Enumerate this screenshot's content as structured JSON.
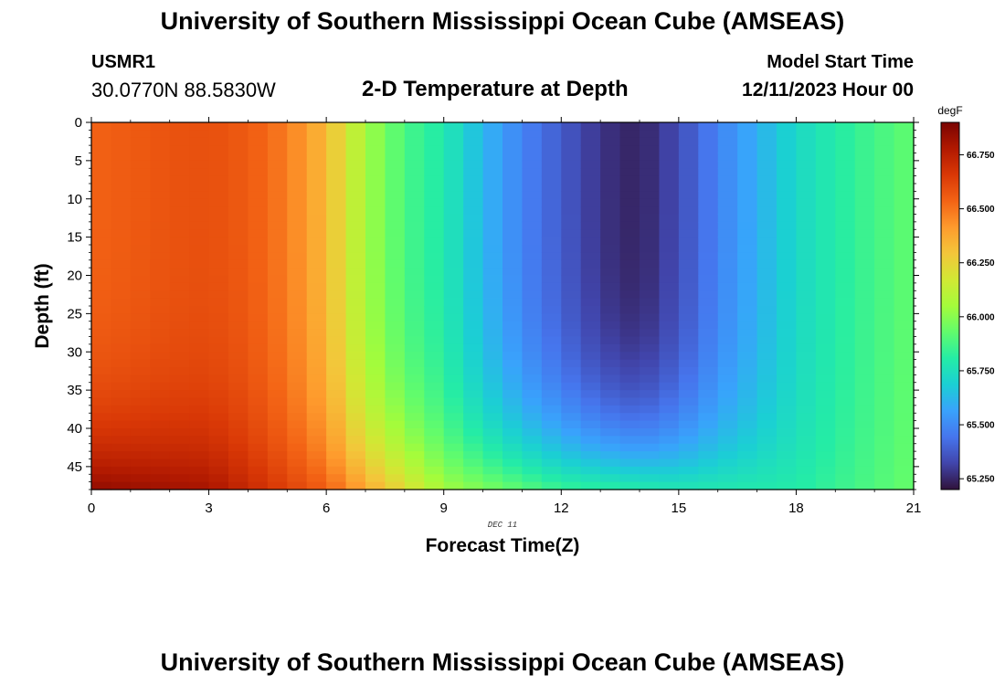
{
  "header": {
    "title": "University of Southern Mississippi Ocean Cube (AMSEAS)",
    "station": "USMR1",
    "coordinates": "30.0770N  88.5830W",
    "plot_title": "2-D Temperature at Depth",
    "model_start_label": "Model Start Time",
    "model_start_value": "12/11/2023 Hour 00"
  },
  "footer": {
    "title": "University of Southern Mississippi Ocean Cube (AMSEAS)"
  },
  "chart_data": {
    "type": "heatmap",
    "title": "2-D Temperature at Depth",
    "xlabel": "Forecast Time(Z)",
    "ylabel": "Depth (ft)",
    "date_label": "DEC 11",
    "x_ticks": [
      0,
      3,
      6,
      9,
      12,
      15,
      18,
      21
    ],
    "y_ticks": [
      0,
      5,
      10,
      15,
      20,
      25,
      30,
      35,
      40,
      45
    ],
    "xlim": [
      0,
      21
    ],
    "ylim": [
      0,
      48
    ],
    "colorbar": {
      "unit": "degF",
      "min": 65.2,
      "max": 66.9,
      "ticks": [
        {
          "value": 66.75,
          "label": "66.750"
        },
        {
          "value": 66.5,
          "label": "66.500"
        },
        {
          "value": 66.25,
          "label": "66.250"
        },
        {
          "value": 66.0,
          "label": "66.000"
        },
        {
          "value": 65.75,
          "label": "65.750"
        },
        {
          "value": 65.5,
          "label": "65.500"
        },
        {
          "value": 65.25,
          "label": "65.250"
        }
      ],
      "colors": [
        "#30123b",
        "#4145ab",
        "#4675ed",
        "#39a2fc",
        "#1bcfd4",
        "#24eca6",
        "#61fc6c",
        "#a4fc3b",
        "#d1e834",
        "#f3c63a",
        "#fe9b2d",
        "#f36315",
        "#d93806",
        "#b11901",
        "#7a0402"
      ]
    },
    "surface_temperature_by_hour": {
      "hours": [
        0,
        1,
        2,
        3,
        4,
        5,
        6,
        7,
        8,
        9,
        10,
        11,
        12,
        13,
        14,
        15,
        16,
        17,
        18,
        19,
        20,
        21
      ],
      "values_degF": [
        66.54,
        66.56,
        66.58,
        66.59,
        66.56,
        66.48,
        66.33,
        66.05,
        65.88,
        65.79,
        65.62,
        65.48,
        65.38,
        65.28,
        65.24,
        65.34,
        65.48,
        65.6,
        65.72,
        65.8,
        65.87,
        65.93
      ]
    },
    "bottom_temperature_by_hour": {
      "hours": [
        0,
        3,
        6,
        9,
        12,
        15,
        18,
        21
      ],
      "values_degF": [
        66.85,
        66.8,
        66.55,
        66.05,
        65.85,
        65.78,
        65.8,
        65.94
      ]
    }
  }
}
